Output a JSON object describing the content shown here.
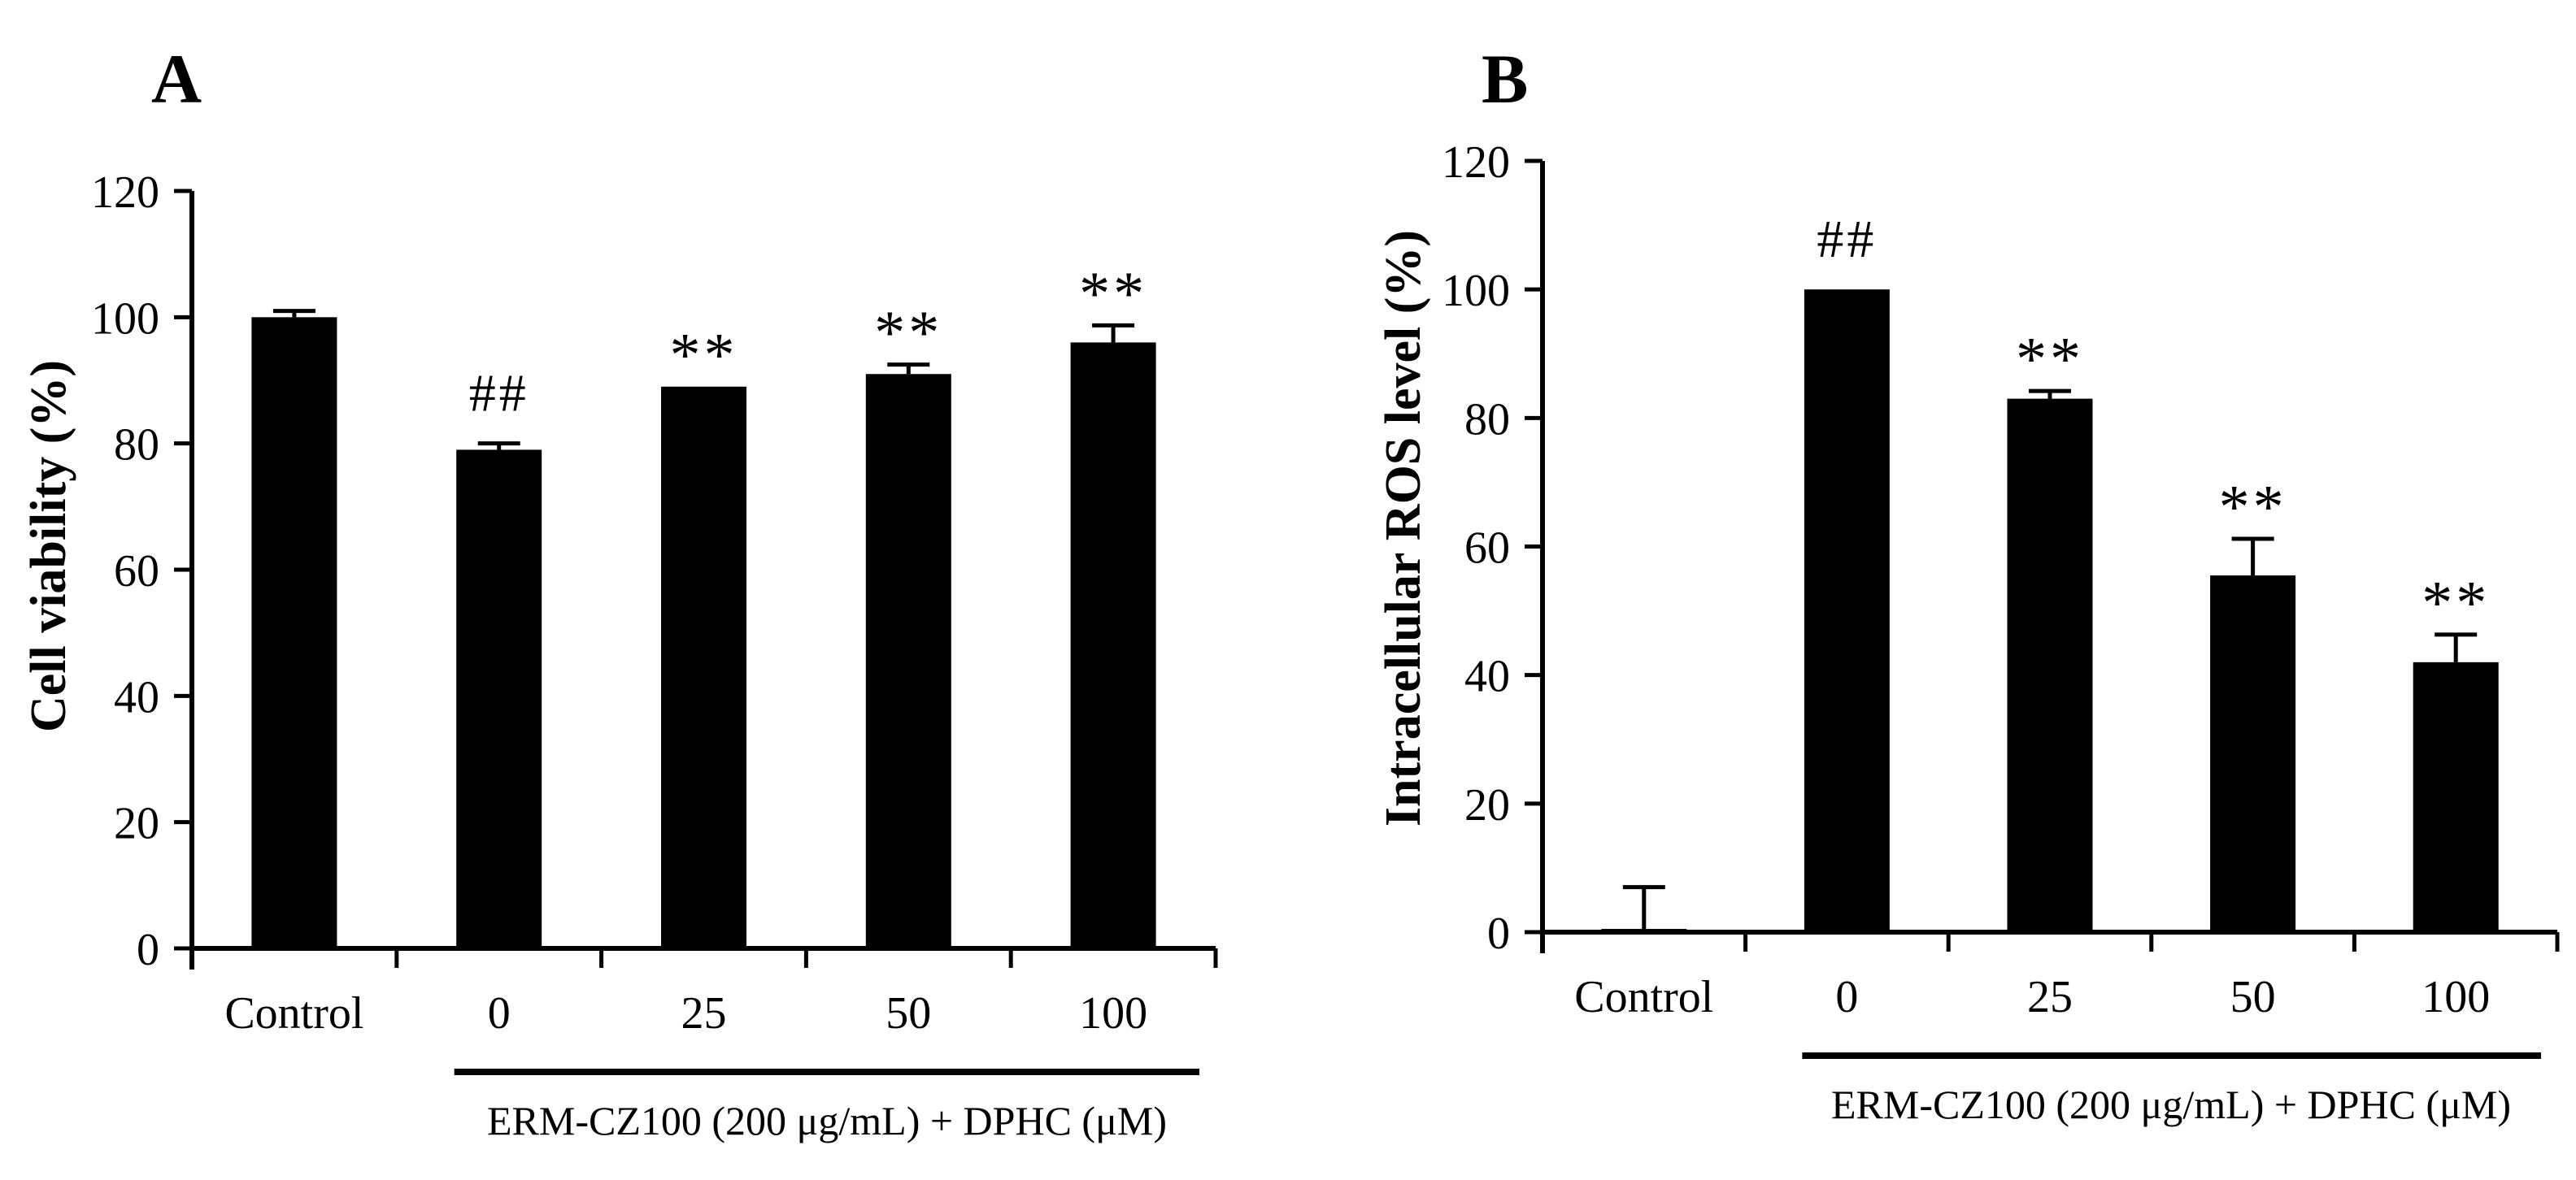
{
  "figure": {
    "background_color": "#ffffff",
    "bar_color": "#000000",
    "axis_color": "#000000",
    "panel_a_letter": "A",
    "panel_b_letter": "B"
  },
  "chart_data": [
    {
      "type": "bar",
      "panel_label": "A",
      "title": "",
      "ylabel": "Cell viability (%)",
      "xlabel": "",
      "categories": [
        "Control",
        "0",
        "25",
        "50",
        "100"
      ],
      "values": [
        100,
        79,
        89,
        91,
        96
      ],
      "errors": [
        1,
        1,
        0,
        1.5,
        2.7
      ],
      "significance": [
        "",
        "##",
        "**",
        "**",
        "**"
      ],
      "ylim": [
        0,
        120
      ],
      "yticks": [
        0,
        20,
        40,
        60,
        80,
        100,
        120
      ],
      "grid": false,
      "legend_position": "none",
      "group_label": "ERM-CZ100 (200 μg/mL) + DPHC (μM)",
      "group_span_categories": [
        "0",
        "25",
        "50",
        "100"
      ]
    },
    {
      "type": "bar",
      "panel_label": "B",
      "title": "",
      "ylabel": "Intracellular ROS level (%)",
      "xlabel": "",
      "categories": [
        "Control",
        "0",
        "25",
        "50",
        "100"
      ],
      "values": [
        0.5,
        100,
        83,
        55.5,
        42
      ],
      "errors": [
        6.5,
        0,
        1.2,
        5.7,
        4.3
      ],
      "significance": [
        "",
        "##",
        "**",
        "**",
        "**"
      ],
      "ylim": [
        0,
        120
      ],
      "yticks": [
        0,
        20,
        40,
        60,
        80,
        100,
        120
      ],
      "grid": false,
      "legend_position": "none",
      "group_label": "ERM-CZ100 (200 μg/mL) + DPHC (μM)",
      "group_span_categories": [
        "0",
        "25",
        "50",
        "100"
      ]
    }
  ]
}
